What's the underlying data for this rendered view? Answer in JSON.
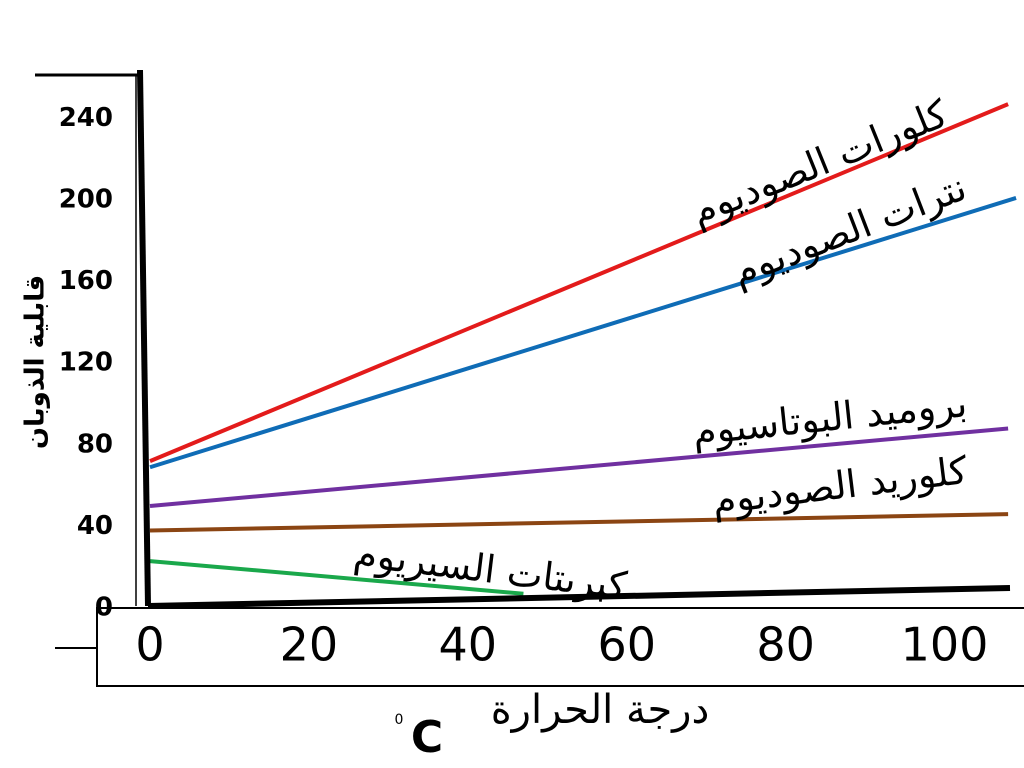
{
  "chart_data": {
    "type": "line",
    "x_label": "درجة الحرارة",
    "x_unit": "C",
    "x_unit_mark": "0",
    "y_label": "قابلية الذوبان",
    "xlim": [
      0,
      110
    ],
    "xticks": [
      0,
      20,
      40,
      60,
      80,
      100
    ],
    "ylim": [
      0,
      260
    ],
    "yticks": [
      0,
      40,
      80,
      120,
      160,
      200,
      240
    ],
    "series": [
      {
        "name": "كلورات الصوديوم",
        "color": "#e31b1b",
        "x": [
          0,
          108
        ],
        "values": [
          72,
          247
        ]
      },
      {
        "name": "نترات الصوديوم",
        "color": "#0f6cb6",
        "x": [
          0,
          109
        ],
        "values": [
          69,
          201
        ]
      },
      {
        "name": "بروميد البوتاسيوم",
        "color": "#7030a0",
        "x": [
          0,
          108
        ],
        "values": [
          50,
          88
        ]
      },
      {
        "name": "كلوريد الصوديوم",
        "color": "#8b4513",
        "x": [
          0,
          108
        ],
        "values": [
          38,
          46
        ]
      },
      {
        "name": "كبريتات السيريوم",
        "color": "#1aa84b",
        "x": [
          0,
          47
        ],
        "values": [
          23,
          7
        ]
      }
    ]
  }
}
